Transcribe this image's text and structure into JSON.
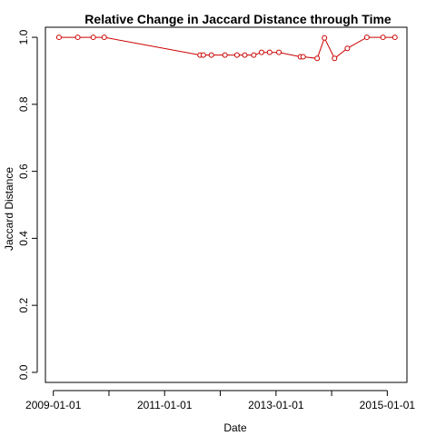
{
  "chart_data": {
    "type": "line",
    "title": "Relative Change in Jaccard Distance through Time",
    "xlabel": "Date",
    "ylabel": "Jaccard Distance",
    "x_type": "date",
    "xlim": [
      "2008-11-10",
      "2015-05-10"
    ],
    "ylim": [
      -0.03,
      1.03
    ],
    "x_ticks": [
      "2009-01-01",
      "2010-01-01",
      "2011-01-01",
      "2012-01-01",
      "2013-01-01",
      "2014-01-01",
      "2015-01-01"
    ],
    "x_tick_labels": [
      "2009-01-01",
      "",
      "2011-01-01",
      "",
      "2013-01-01",
      "",
      "2015-01-01"
    ],
    "y_ticks": [
      0.0,
      0.2,
      0.4,
      0.6,
      0.8,
      1.0
    ],
    "y_tick_labels": [
      "0.0",
      "0.2",
      "0.4",
      "0.6",
      "0.8",
      "1.0"
    ],
    "line_color": "#cc0000",
    "point_color": "#cc0000",
    "marker": "open-circle",
    "grid": false,
    "legend": "none",
    "series": [
      {
        "x": [
          "2009-02-07",
          "2009-06-10",
          "2009-09-20",
          "2009-12-01",
          "2011-08-22",
          "2011-09-12",
          "2011-11-04",
          "2012-02-01",
          "2012-04-20",
          "2012-06-10",
          "2012-08-08",
          "2012-09-28",
          "2012-11-20",
          "2013-01-20",
          "2013-06-10",
          "2013-06-28",
          "2013-09-28",
          "2013-11-15",
          "2014-01-20",
          "2014-04-14",
          "2014-08-20",
          "2014-12-04",
          "2015-02-20"
        ],
        "y": [
          1.0,
          1.0,
          1.0,
          1.0,
          0.947,
          0.947,
          0.947,
          0.947,
          0.947,
          0.947,
          0.947,
          0.955,
          0.955,
          0.955,
          0.942,
          0.942,
          0.937,
          0.998,
          0.937,
          0.967,
          1.0,
          1.0,
          1.0
        ]
      }
    ]
  }
}
